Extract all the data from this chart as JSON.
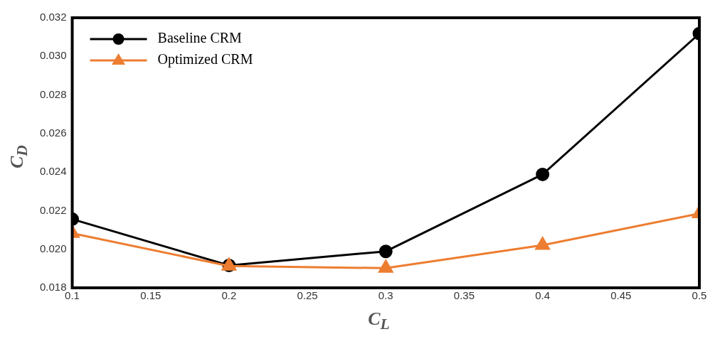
{
  "chart_data": {
    "type": "line",
    "xlabel": "C$_{L}$",
    "ylabel": "C$_{D}$",
    "x": [
      0.1,
      0.2,
      0.3,
      0.4,
      0.5
    ],
    "series": [
      {
        "name": "Baseline CRM",
        "color": "#000000",
        "marker": "circle",
        "values": [
          0.02156,
          0.01916,
          0.01989,
          0.02388,
          0.03118
        ]
      },
      {
        "name": "Optimized CRM",
        "color": "#ed7d31",
        "marker": "triangle",
        "values": [
          0.02083,
          0.01913,
          0.01902,
          0.02021,
          0.02185
        ]
      }
    ],
    "xlim": [
      0.1,
      0.5
    ],
    "xticks": [
      0.1,
      0.15,
      0.2,
      0.25,
      0.3,
      0.35,
      0.4,
      0.45,
      0.5
    ],
    "ylim": [
      0.018,
      0.032
    ],
    "yticks": [
      0.018,
      {
        "value": 0.02,
        "label": "0.020"
      },
      0.022,
      0.024,
      0.026,
      0.028,
      {
        "value": 0.03,
        "label": "0.030"
      },
      0.032
    ],
    "grid": false,
    "legend": "top left",
    "line_style": "solid"
  }
}
